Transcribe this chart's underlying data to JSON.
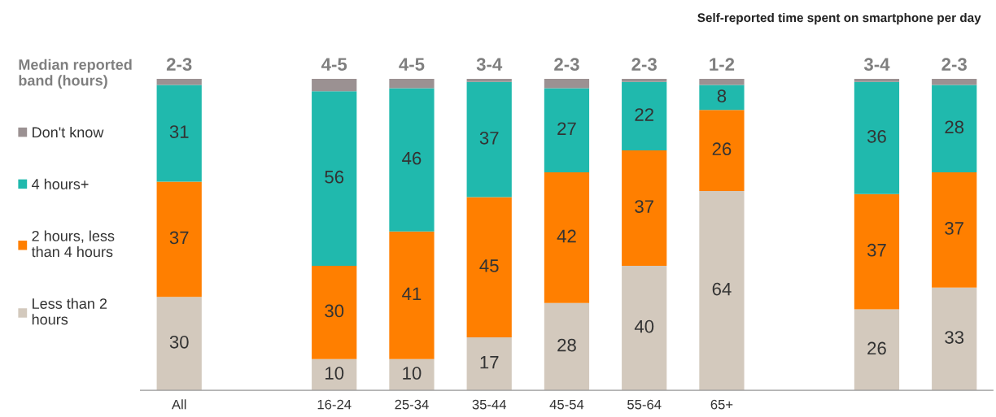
{
  "chart_data": {
    "type": "bar",
    "stacked": true,
    "title": "Self-reported time spent on smartphone per day",
    "legend_title": "Median reported\nband (hours)",
    "legend": "left",
    "categories": [
      "All",
      null,
      "16-24",
      "25-34",
      "35-44",
      "45-54",
      "55-64",
      "65+",
      null,
      null,
      null
    ],
    "series": [
      {
        "name": "Less than 2\nhours",
        "color": "#d3c9bd",
        "values": [
          30,
          null,
          10,
          10,
          17,
          28,
          40,
          64,
          null,
          26,
          33
        ],
        "value_labels": [
          "30",
          null,
          "10",
          "10",
          "17",
          "28",
          "40",
          "64",
          null,
          "26",
          "33"
        ]
      },
      {
        "name": "2 hours, less\nthan 4 hours",
        "color": "#ff7f00",
        "values": [
          37,
          null,
          30,
          41,
          45,
          42,
          37,
          26,
          null,
          37,
          37
        ],
        "value_labels": [
          "37",
          null,
          "30",
          "41",
          "45",
          "42",
          "37",
          "26",
          null,
          "37",
          "37"
        ]
      },
      {
        "name": "4 hours+",
        "color": "#20b9ad",
        "values": [
          31,
          null,
          56,
          46,
          37,
          27,
          22,
          8,
          null,
          36,
          28
        ],
        "value_labels": [
          "31",
          null,
          "56",
          "46",
          "37",
          "27",
          "22",
          "8",
          null,
          "36",
          "28"
        ]
      },
      {
        "name": "Don't know",
        "color": "#9b9192",
        "values": [
          2,
          null,
          4,
          3,
          1,
          3,
          1,
          2,
          null,
          1,
          2
        ],
        "value_labels": [
          null,
          null,
          null,
          null,
          null,
          null,
          null,
          null,
          null,
          null,
          null
        ]
      }
    ],
    "ylim": [
      0,
      100
    ],
    "tick_labels": "x",
    "grid": false,
    "annotations": [
      "2-3",
      "4-5",
      "4-5",
      "3-4",
      "2-3",
      "2-3",
      "1-2",
      "3-4",
      "2-3"
    ]
  }
}
